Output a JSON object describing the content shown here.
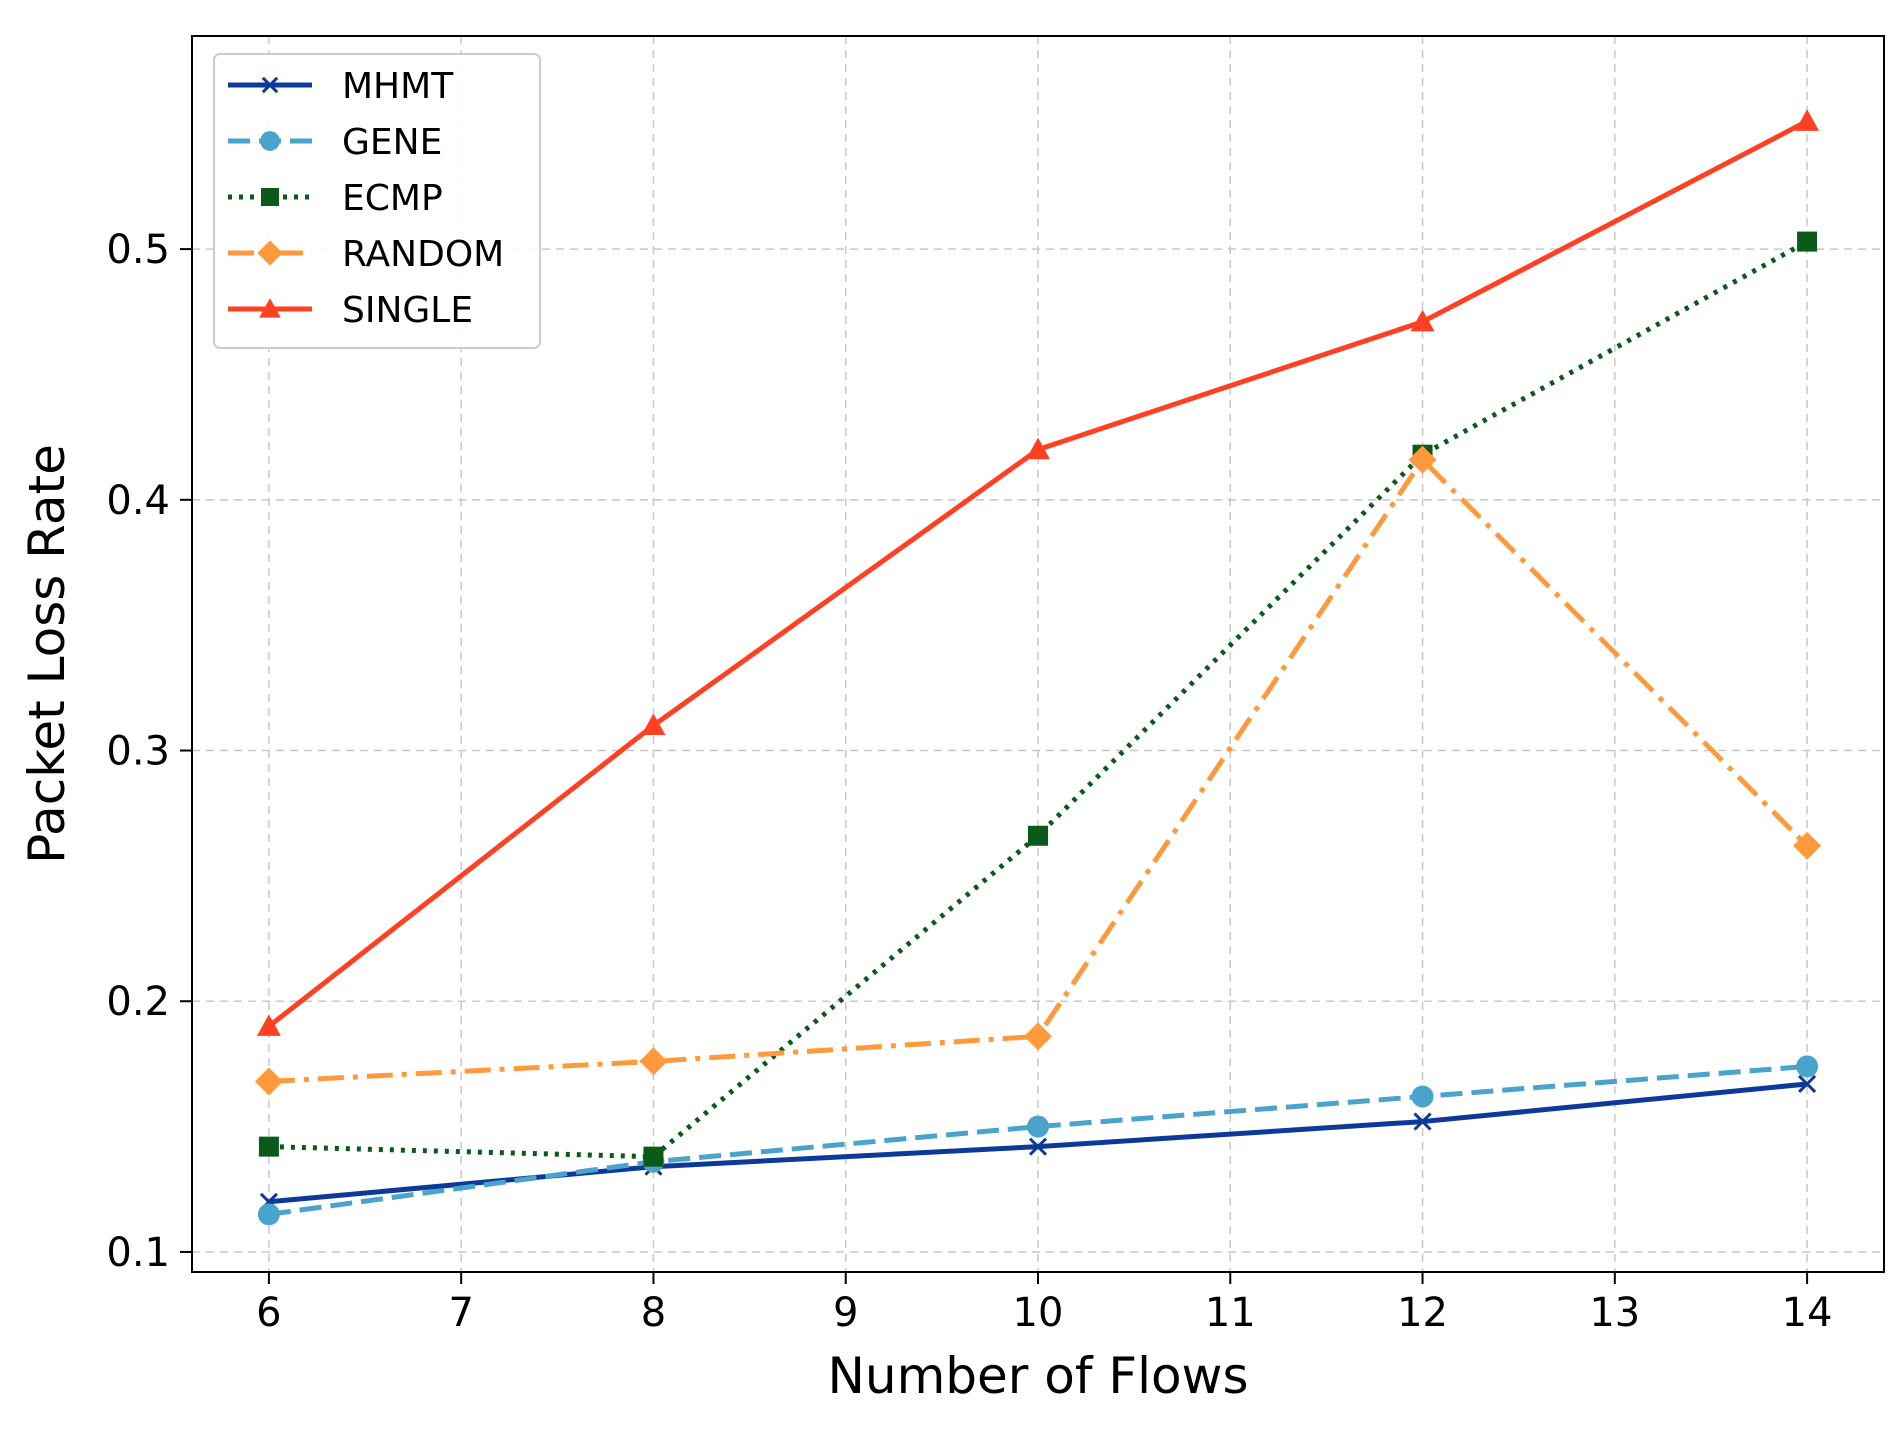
{
  "chart_data": {
    "type": "line",
    "title": "",
    "xlabel": "Number of Flows",
    "ylabel": "Packet Loss Rate",
    "xlim": [
      5.6,
      14.4
    ],
    "ylim": [
      0.092,
      0.585
    ],
    "xticks": [
      6,
      7,
      8,
      9,
      10,
      11,
      12,
      13,
      14
    ],
    "yticks": [
      0.1,
      0.2,
      0.3,
      0.4,
      0.5
    ],
    "ytick_labels": [
      "0.1",
      "0.2",
      "0.3",
      "0.4",
      "0.5"
    ],
    "grid": true,
    "legend_position": "top-left",
    "x": [
      6,
      8,
      10,
      12,
      14
    ],
    "series": [
      {
        "name": "MHMT",
        "values": [
          0.12,
          0.134,
          0.142,
          0.152,
          0.167
        ],
        "color": "#0d3a99",
        "marker": "x",
        "line_style": "solid"
      },
      {
        "name": "GENE",
        "values": [
          0.115,
          0.136,
          0.15,
          0.162,
          0.174
        ],
        "color": "#4aa3cc",
        "marker": "circle",
        "line_style": "dashed"
      },
      {
        "name": "ECMP",
        "values": [
          0.142,
          0.138,
          0.266,
          0.418,
          0.503
        ],
        "color": "#0a5a1a",
        "marker": "square",
        "line_style": "dotted"
      },
      {
        "name": "RANDOM",
        "values": [
          0.168,
          0.176,
          0.186,
          0.416,
          0.262
        ],
        "color": "#ff9a3c",
        "marker": "diamond",
        "line_style": "dashdot"
      },
      {
        "name": "SINGLE",
        "values": [
          0.19,
          0.31,
          0.42,
          0.471,
          0.551
        ],
        "color": "#ff4022",
        "marker": "triangle",
        "line_style": "solid"
      }
    ]
  }
}
